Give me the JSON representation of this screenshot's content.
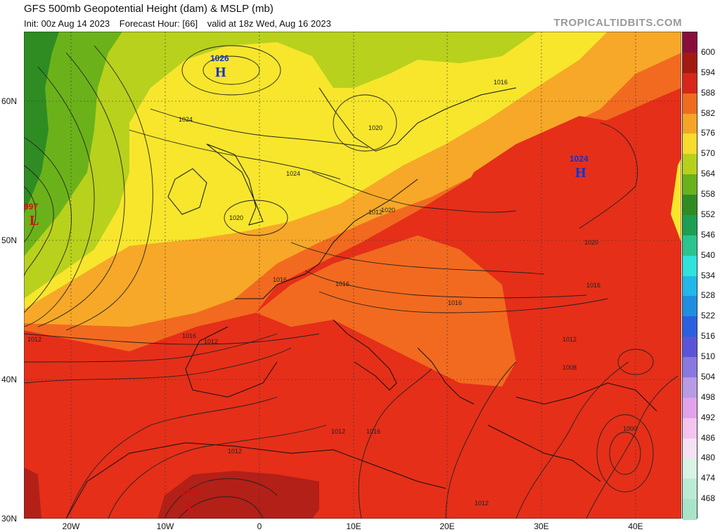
{
  "header": {
    "title": "GFS 500mb Geopotential Height (dam) & MSLP (mb)",
    "init": "Init: 00z Aug 14 2023",
    "forecast_hour": "Forecast Hour: [66]",
    "valid": "valid at 18z Wed, Aug 16 2023",
    "brand": "TROPICALTIDBITS.COM"
  },
  "axes": {
    "lat_labels": [
      "60N",
      "50N",
      "40N",
      "30N"
    ],
    "lon_labels": [
      "20W",
      "10W",
      "0",
      "10E",
      "20E",
      "30E",
      "40E"
    ]
  },
  "colorbar": {
    "labels": [
      "600",
      "594",
      "588",
      "582",
      "576",
      "570",
      "564",
      "558",
      "552",
      "546",
      "540",
      "534",
      "528",
      "522",
      "516",
      "510",
      "504",
      "498",
      "492",
      "486",
      "480",
      "474",
      "468"
    ],
    "colors": [
      "#8a0e3c",
      "#a31a12",
      "#d8261a",
      "#ef6c1e",
      "#f5a526",
      "#f6dc2c",
      "#b6d11c",
      "#6ab21a",
      "#2e8c22",
      "#1e9e52",
      "#2ac48e",
      "#2fe2dc",
      "#1fb8e8",
      "#1e8fe0",
      "#2a5fe0",
      "#5a55d8",
      "#8a78e0",
      "#b89ae6",
      "#e2a2ea",
      "#f2c4ee",
      "#f4e2f4",
      "#d8f2e6",
      "#bcebd4",
      "#a8e4c8"
    ]
  },
  "pressure_centers": [
    {
      "type": "H",
      "value": "1026",
      "color": "#1133cc"
    },
    {
      "type": "H",
      "value": "1024",
      "color": "#1133cc"
    },
    {
      "type": "L",
      "value": "997",
      "color": "#cc1111"
    },
    {
      "type": "L",
      "value": "1006",
      "color": "#cc1111"
    }
  ],
  "isobar_labels": [
    "1024",
    "1024",
    "1020",
    "1020",
    "1016",
    "1020",
    "1020",
    "1016",
    "1016",
    "1016",
    "1016",
    "1016",
    "1012",
    "1012",
    "1012",
    "1012",
    "1008",
    "1012",
    "1016",
    "1012",
    "1000",
    "1012"
  ]
}
